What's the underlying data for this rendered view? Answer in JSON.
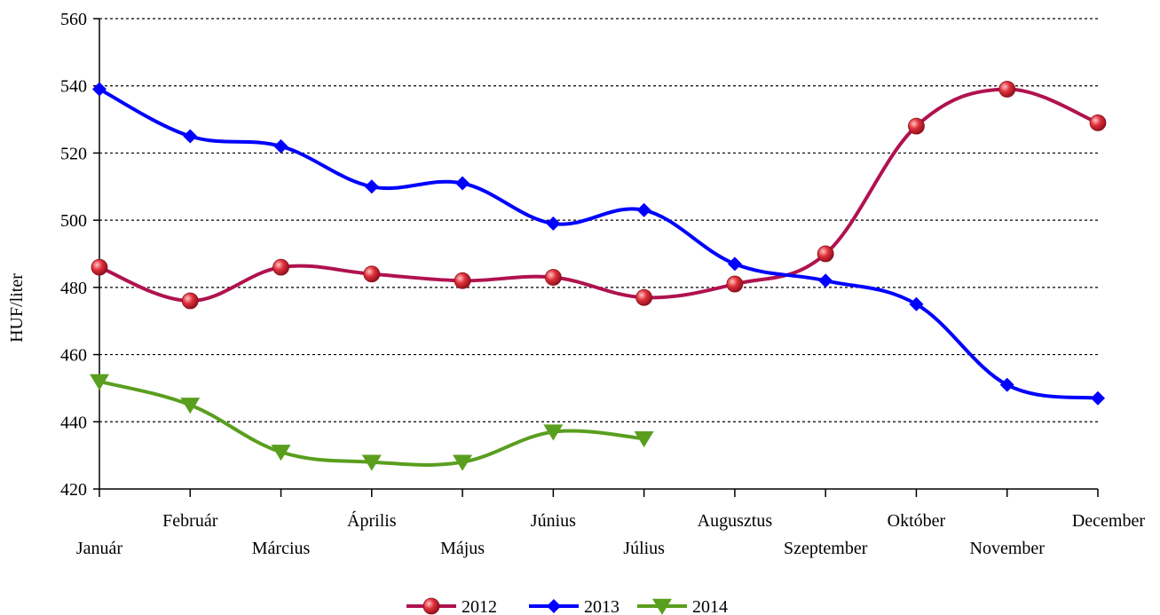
{
  "chart_data": {
    "type": "line",
    "title": "",
    "xlabel": "",
    "ylabel": "HUF/liter",
    "ylim": [
      420,
      560
    ],
    "yticks": [
      420,
      440,
      460,
      480,
      500,
      520,
      540,
      560
    ],
    "grid": "horizontal dotted",
    "legend_position": "bottom-center",
    "categories": [
      "Január",
      "Február",
      "Március",
      "Április",
      "Május",
      "Június",
      "Július",
      "Augusztus",
      "Szeptember",
      "Október",
      "November",
      "December"
    ],
    "series": [
      {
        "name": "2012",
        "color": "#B0124F",
        "marker": "circle",
        "marker_color": "#E0303A",
        "values": [
          486,
          476,
          486,
          484,
          482,
          483,
          477,
          481,
          490,
          528,
          539,
          529
        ]
      },
      {
        "name": "2013",
        "color": "#0000FF",
        "marker": "diamond",
        "marker_color": "#0000FF",
        "values": [
          539,
          525,
          522,
          510,
          511,
          499,
          503,
          487,
          482,
          475,
          451,
          447
        ]
      },
      {
        "name": "2014",
        "color": "#5A9E1E",
        "marker": "triangle-down",
        "marker_color": "#5A9E1E",
        "values": [
          452,
          445,
          431,
          428,
          428,
          437,
          435,
          null,
          null,
          null,
          null,
          null
        ]
      }
    ]
  }
}
